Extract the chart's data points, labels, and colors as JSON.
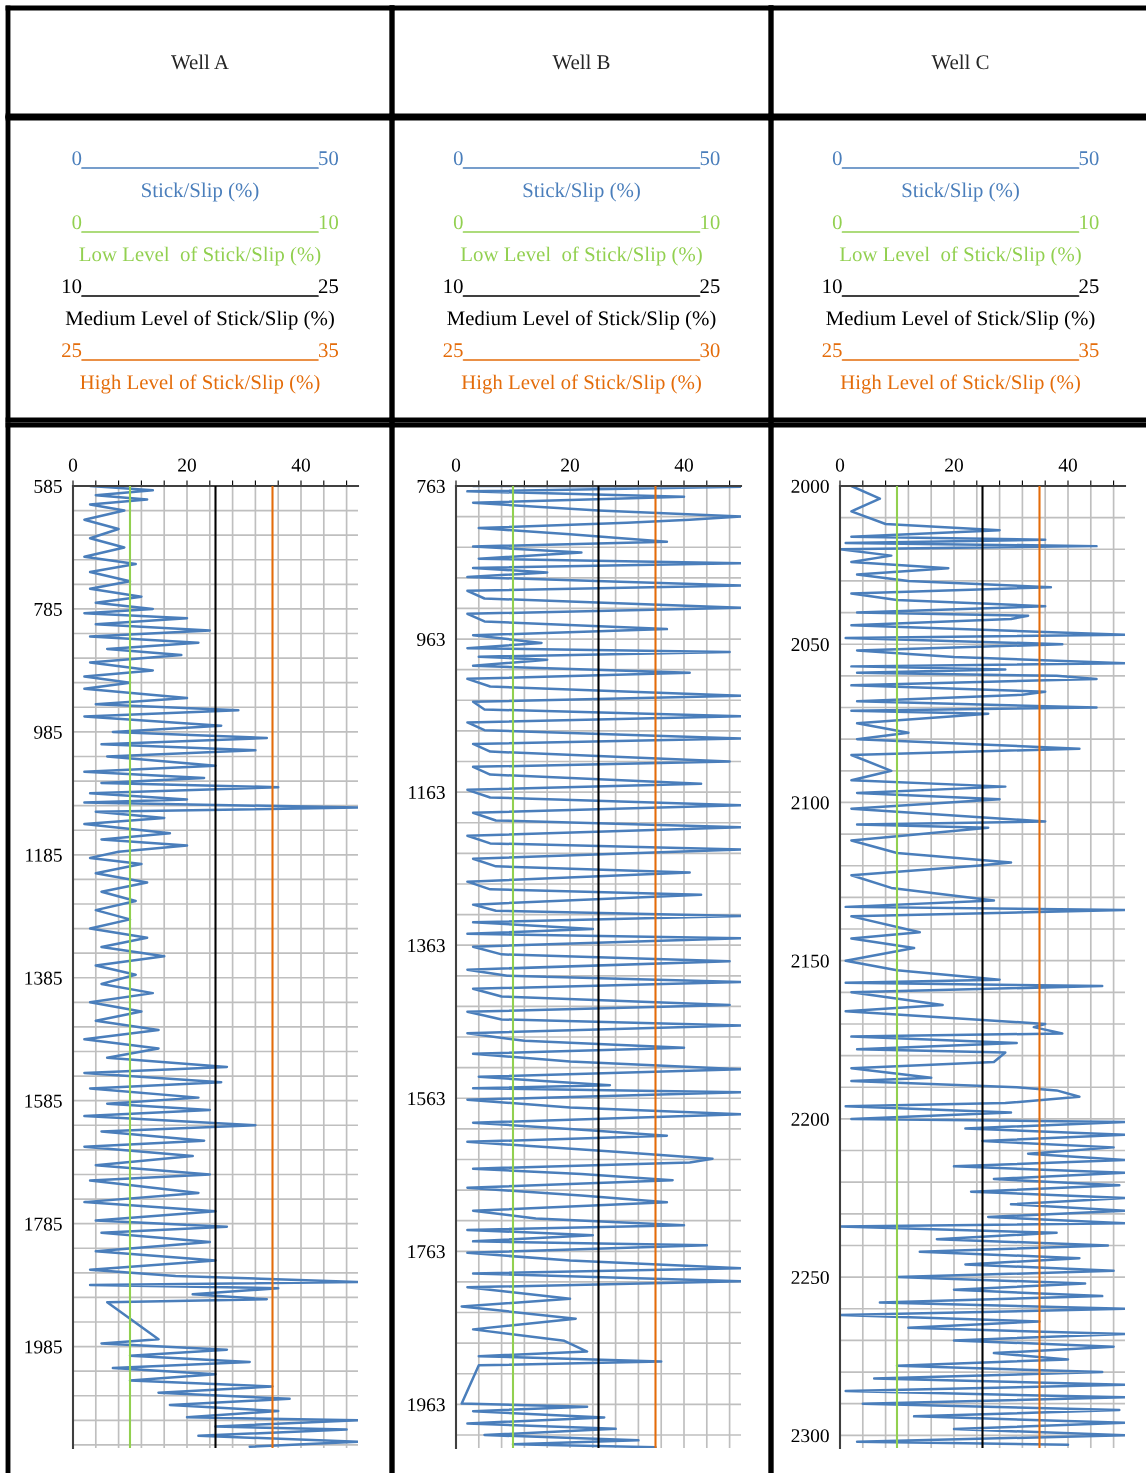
{
  "chart_data": [
    {
      "type": "line",
      "title": "Well A",
      "legend": "top",
      "grid": true,
      "xlim": [
        0,
        50
      ],
      "ylim": [
        2150,
        585
      ],
      "xticks": [
        0,
        {
          "value": 4,
          "label": null
        },
        {
          "value": 8,
          "label": null
        },
        {
          "value": 12,
          "label": null
        },
        {
          "value": 16,
          "label": null
        },
        20,
        {
          "value": 24,
          "label": null
        },
        {
          "value": 28,
          "label": null
        },
        {
          "value": 32,
          "label": null
        },
        {
          "value": 36,
          "label": null
        },
        40,
        {
          "value": 44,
          "label": null
        },
        {
          "value": 48,
          "label": null
        }
      ],
      "yticks": [
        585,
        {
          "value": 625,
          "label": null
        },
        {
          "value": 665,
          "label": null
        },
        {
          "value": 705,
          "label": null
        },
        {
          "value": 745,
          "label": null
        },
        785,
        {
          "value": 825,
          "label": null
        },
        {
          "value": 865,
          "label": null
        },
        {
          "value": 905,
          "label": null
        },
        {
          "value": 945,
          "label": null
        },
        985,
        {
          "value": 1025,
          "label": null
        },
        {
          "value": 1065,
          "label": null
        },
        {
          "value": 1105,
          "label": null
        },
        {
          "value": 1145,
          "label": null
        },
        1185,
        {
          "value": 1225,
          "label": null
        },
        {
          "value": 1265,
          "label": null
        },
        {
          "value": 1305,
          "label": null
        },
        {
          "value": 1345,
          "label": null
        },
        1385,
        {
          "value": 1425,
          "label": null
        },
        {
          "value": 1465,
          "label": null
        },
        {
          "value": 1505,
          "label": null
        },
        {
          "value": 1545,
          "label": null
        },
        1585,
        {
          "value": 1625,
          "label": null
        },
        {
          "value": 1665,
          "label": null
        },
        {
          "value": 1705,
          "label": null
        },
        {
          "value": 1745,
          "label": null
        },
        1785,
        {
          "value": 1825,
          "label": null
        },
        {
          "value": 1865,
          "label": null
        },
        {
          "value": 1905,
          "label": null
        },
        {
          "value": 1945,
          "label": null
        },
        1985,
        {
          "value": 2025,
          "label": null
        },
        {
          "value": 2065,
          "label": null
        },
        {
          "value": 2105,
          "label": null
        },
        {
          "value": 2145,
          "label": null
        }
      ],
      "annotations": [
        "0",
        "50",
        "0",
        "10",
        "10",
        "25",
        "25",
        "35"
      ],
      "ref_lines": [
        {
          "axis": "x",
          "value": 10,
          "label": "Low Level  of Stick/Slip (%)",
          "color": "#92d050"
        },
        {
          "axis": "x",
          "value": 25,
          "label": "Medium Level of Stick/Slip (%)",
          "color": "#000000"
        },
        {
          "axis": "x",
          "value": 35,
          "label": "High Level of Stick/Slip (%)",
          "color": "#e46c0a"
        }
      ],
      "series": [
        {
          "name": "Stick/Slip (%)",
          "color": "#4a7ebb",
          "x": [
            3,
            14,
            4,
            13,
            3,
            9,
            2,
            8,
            3,
            9,
            2,
            11,
            3,
            10,
            3,
            12,
            4,
            14,
            2,
            20,
            4,
            24,
            3,
            22,
            6,
            19,
            3,
            14,
            2,
            10,
            2,
            20,
            4,
            29,
            2,
            26,
            7,
            34,
            5,
            32,
            6,
            25,
            2,
            23,
            5,
            36,
            3,
            20,
            2,
            50,
            4,
            16,
            2,
            17,
            5,
            20,
            8,
            3,
            12,
            4,
            13,
            5,
            11,
            4,
            10,
            3,
            13,
            5,
            16,
            4,
            11,
            5,
            14,
            3,
            12,
            4,
            15,
            2,
            15,
            6,
            27,
            2,
            26,
            3,
            22,
            6,
            24,
            2,
            32,
            5,
            23,
            2,
            21,
            4,
            24,
            3,
            22,
            2,
            25,
            4,
            27,
            5,
            24,
            4,
            25,
            3,
            18,
            50,
            3,
            36,
            21,
            34,
            6,
            15,
            5,
            27,
            10,
            31,
            7,
            25,
            10,
            35,
            15,
            38,
            17,
            36,
            20,
            50,
            25,
            48,
            22,
            50,
            31
          ],
          "values": [
            585,
            592,
            600,
            607,
            615,
            625,
            640,
            655,
            670,
            685,
            700,
            712,
            725,
            740,
            752,
            765,
            775,
            785,
            792,
            800,
            810,
            820,
            830,
            840,
            850,
            860,
            872,
            885,
            895,
            905,
            915,
            930,
            940,
            950,
            960,
            975,
            985,
            995,
            1005,
            1015,
            1025,
            1040,
            1050,
            1060,
            1068,
            1075,
            1085,
            1095,
            1100,
            1108,
            1115,
            1125,
            1135,
            1150,
            1160,
            1170,
            1180,
            1190,
            1200,
            1215,
            1230,
            1245,
            1260,
            1275,
            1290,
            1305,
            1320,
            1335,
            1350,
            1365,
            1380,
            1395,
            1410,
            1425,
            1440,
            1455,
            1470,
            1485,
            1500,
            1515,
            1530,
            1540,
            1555,
            1565,
            1580,
            1590,
            1600,
            1610,
            1625,
            1635,
            1650,
            1660,
            1675,
            1690,
            1705,
            1715,
            1735,
            1750,
            1765,
            1780,
            1790,
            1800,
            1815,
            1830,
            1845,
            1860,
            1870,
            1880,
            1885,
            1890,
            1900,
            1908,
            1913,
            1973,
            1980,
            1990,
            2000,
            2010,
            2020,
            2030,
            2040,
            2050,
            2060,
            2070,
            2080,
            2090,
            2100,
            2105,
            2115,
            2120,
            2130,
            2140,
            2148
          ]
        }
      ]
    },
    {
      "type": "line",
      "title": "Well B",
      "legend": "top",
      "grid": true,
      "xlim": [
        0,
        50
      ],
      "ylim": [
        2020,
        763
      ],
      "xticks": [
        0,
        {
          "value": 4,
          "label": null
        },
        {
          "value": 8,
          "label": null
        },
        {
          "value": 12,
          "label": null
        },
        {
          "value": 16,
          "label": null
        },
        20,
        {
          "value": 24,
          "label": null
        },
        {
          "value": 28,
          "label": null
        },
        {
          "value": 32,
          "label": null
        },
        {
          "value": 36,
          "label": null
        },
        40,
        {
          "value": 44,
          "label": null
        },
        {
          "value": 48,
          "label": null
        }
      ],
      "yticks": [
        763,
        {
          "value": 803,
          "label": null
        },
        {
          "value": 843,
          "label": null
        },
        {
          "value": 883,
          "label": null
        },
        {
          "value": 923,
          "label": null
        },
        963,
        {
          "value": 1003,
          "label": null
        },
        {
          "value": 1043,
          "label": null
        },
        {
          "value": 1083,
          "label": null
        },
        {
          "value": 1123,
          "label": null
        },
        1163,
        {
          "value": 1203,
          "label": null
        },
        {
          "value": 1243,
          "label": null
        },
        {
          "value": 1283,
          "label": null
        },
        {
          "value": 1323,
          "label": null
        },
        1363,
        {
          "value": 1403,
          "label": null
        },
        {
          "value": 1443,
          "label": null
        },
        {
          "value": 1483,
          "label": null
        },
        {
          "value": 1523,
          "label": null
        },
        1563,
        {
          "value": 1603,
          "label": null
        },
        {
          "value": 1643,
          "label": null
        },
        {
          "value": 1683,
          "label": null
        },
        {
          "value": 1723,
          "label": null
        },
        1763,
        {
          "value": 1803,
          "label": null
        },
        {
          "value": 1843,
          "label": null
        },
        {
          "value": 1883,
          "label": null
        },
        {
          "value": 1923,
          "label": null
        },
        1963,
        {
          "value": 2003,
          "label": null
        }
      ],
      "annotations": [
        "0",
        "50",
        "0",
        "10",
        "10",
        "25",
        "25",
        "30"
      ],
      "ref_lines": [
        {
          "axis": "x",
          "value": 10,
          "label": "Low Level  of Stick/Slip (%)",
          "color": "#92d050"
        },
        {
          "axis": "x",
          "value": 25,
          "label": "Medium Level of Stick/Slip (%)",
          "color": "#000000"
        },
        {
          "axis": "x",
          "value": 35,
          "label": "High Level of Stick/Slip (%)",
          "color": "#e46c0a"
        }
      ],
      "series": [
        {
          "name": "Stick/Slip (%)",
          "color": "#4a7ebb",
          "x": [
            3,
            50,
            2,
            40,
            3,
            25,
            50,
            41,
            30,
            4,
            20,
            37,
            3,
            22,
            4,
            50,
            3,
            16,
            2,
            50,
            2,
            5,
            50,
            2,
            5,
            37,
            3,
            15,
            2,
            48,
            4,
            16,
            3,
            41,
            2,
            6,
            50,
            3,
            5,
            50,
            2,
            5,
            50,
            3,
            6,
            48,
            3,
            6,
            43,
            2,
            6,
            50,
            3,
            7,
            50,
            2,
            6,
            50,
            3,
            7,
            41,
            2,
            6,
            43,
            3,
            7,
            50,
            3,
            24,
            2,
            50,
            3,
            8,
            48,
            2,
            9,
            50,
            3,
            8,
            48,
            2,
            8,
            50,
            2,
            12,
            40,
            3,
            20,
            50,
            4,
            27,
            3,
            50,
            2,
            20,
            50,
            3,
            24,
            37,
            2,
            28,
            45,
            41,
            3,
            22,
            38,
            2,
            22,
            37,
            3,
            14,
            40,
            2,
            24,
            3,
            44,
            2,
            20,
            50,
            3,
            50,
            2,
            20,
            1,
            21,
            3,
            19,
            23,
            4,
            36,
            4,
            1,
            23,
            3,
            26,
            2,
            28,
            5,
            32,
            10,
            35
          ],
          "values": [
            763,
            764,
            770,
            777,
            785,
            795,
            803,
            807,
            811,
            818,
            826,
            836,
            842,
            850,
            858,
            864,
            870,
            876,
            882,
            893,
            900,
            910,
            922,
            930,
            940,
            950,
            958,
            968,
            975,
            980,
            986,
            990,
            998,
            1007,
            1015,
            1025,
            1037,
            1045,
            1055,
            1064,
            1072,
            1082,
            1093,
            1100,
            1110,
            1123,
            1130,
            1140,
            1152,
            1160,
            1170,
            1180,
            1190,
            1200,
            1209,
            1220,
            1230,
            1238,
            1250,
            1260,
            1268,
            1280,
            1290,
            1297,
            1310,
            1318,
            1325,
            1333,
            1342,
            1348,
            1354,
            1365,
            1375,
            1384,
            1395,
            1403,
            1411,
            1420,
            1430,
            1441,
            1450,
            1460,
            1468,
            1478,
            1488,
            1497,
            1505,
            1515,
            1525,
            1535,
            1546,
            1550,
            1555,
            1565,
            1575,
            1584,
            1595,
            1605,
            1612,
            1620,
            1633,
            1642,
            1647,
            1655,
            1662,
            1670,
            1680,
            1690,
            1699,
            1710,
            1720,
            1729,
            1735,
            1742,
            1750,
            1755,
            1765,
            1775,
            1785,
            1792,
            1802,
            1810,
            1825,
            1835,
            1851,
            1865,
            1880,
            1894,
            1900,
            1907,
            1912,
            1962,
            1966,
            1972,
            1980,
            1988,
            1995,
            2003,
            2010,
            2015,
            2019
          ]
        }
      ]
    },
    {
      "type": "line",
      "title": "Well C",
      "legend": "top",
      "grid": true,
      "xlim": [
        0,
        50
      ],
      "ylim": [
        2304,
        2000
      ],
      "xticks": [
        0,
        {
          "value": 4,
          "label": null
        },
        {
          "value": 8,
          "label": null
        },
        {
          "value": 12,
          "label": null
        },
        {
          "value": 16,
          "label": null
        },
        20,
        {
          "value": 24,
          "label": null
        },
        {
          "value": 28,
          "label": null
        },
        {
          "value": 32,
          "label": null
        },
        {
          "value": 36,
          "label": null
        },
        40,
        {
          "value": 44,
          "label": null
        },
        {
          "value": 48,
          "label": null
        }
      ],
      "yticks": [
        2000,
        {
          "value": 2010,
          "label": null
        },
        {
          "value": 2020,
          "label": null
        },
        {
          "value": 2030,
          "label": null
        },
        {
          "value": 2040,
          "label": null
        },
        2050,
        {
          "value": 2060,
          "label": null
        },
        {
          "value": 2070,
          "label": null
        },
        {
          "value": 2080,
          "label": null
        },
        {
          "value": 2090,
          "label": null
        },
        2100,
        {
          "value": 2110,
          "label": null
        },
        {
          "value": 2120,
          "label": null
        },
        {
          "value": 2130,
          "label": null
        },
        {
          "value": 2140,
          "label": null
        },
        2150,
        {
          "value": 2160,
          "label": null
        },
        {
          "value": 2170,
          "label": null
        },
        {
          "value": 2180,
          "label": null
        },
        {
          "value": 2190,
          "label": null
        },
        2200,
        {
          "value": 2210,
          "label": null
        },
        {
          "value": 2220,
          "label": null
        },
        {
          "value": 2230,
          "label": null
        },
        {
          "value": 2240,
          "label": null
        },
        2250,
        {
          "value": 2260,
          "label": null
        },
        {
          "value": 2270,
          "label": null
        },
        {
          "value": 2280,
          "label": null
        },
        {
          "value": 2290,
          "label": null
        },
        2300
      ],
      "annotations": [
        "0",
        "50",
        "0",
        "10",
        "10",
        "25",
        "25",
        "35"
      ],
      "ref_lines": [
        {
          "axis": "x",
          "value": 10,
          "label": "Low Level  of Stick/Slip (%)",
          "color": "#92d050"
        },
        {
          "axis": "x",
          "value": 25,
          "label": "Medium Level of Stick/Slip (%)",
          "color": "#000000"
        },
        {
          "axis": "x",
          "value": 35,
          "label": "High Level of Stick/Slip (%)",
          "color": "#e46c0a"
        }
      ],
      "series": [
        {
          "name": "Stick/Slip (%)",
          "color": "#4a7ebb",
          "x": [
            2,
            7,
            2,
            8,
            28,
            2,
            36,
            1,
            45,
            0,
            9,
            2,
            19,
            3,
            12,
            37,
            2,
            10,
            36,
            3,
            33,
            30,
            2,
            50,
            1,
            39,
            3,
            20,
            50,
            2,
            29,
            3,
            38,
            45,
            2,
            36,
            32,
            3,
            45,
            2,
            26,
            3,
            12,
            3,
            42,
            2,
            9,
            2,
            29,
            3,
            28,
            2,
            36,
            3,
            26,
            2,
            10,
            30,
            24,
            2,
            9,
            27,
            1,
            50,
            2,
            14,
            2,
            13,
            1,
            10,
            28,
            1,
            46,
            2,
            18,
            1,
            36,
            34,
            39,
            2,
            31,
            3,
            29,
            27,
            2,
            16,
            2,
            31,
            38,
            42,
            29,
            1,
            30,
            2,
            50,
            22,
            50,
            25,
            48,
            33,
            50,
            20,
            50,
            27,
            49,
            23,
            50,
            30,
            50,
            26,
            50,
            0,
            38,
            17,
            47,
            14,
            42,
            22,
            48,
            10,
            43,
            20,
            46,
            7,
            50,
            0,
            35,
            12,
            50,
            20,
            48,
            27,
            40,
            10,
            46,
            6,
            50,
            1,
            50,
            4,
            49,
            13,
            50,
            20,
            50,
            3,
            40
          ],
          "values": [
            2000,
            2004,
            2008,
            2012,
            2014,
            2016,
            2017,
            2018,
            2019,
            2020,
            2022,
            2024,
            2026,
            2028,
            2030,
            2032,
            2034,
            2036,
            2038,
            2040,
            2041,
            2042,
            2044,
            2047,
            2048,
            2050,
            2052,
            2054,
            2056,
            2057,
            2058,
            2059,
            2060,
            2061,
            2063,
            2065,
            2066,
            2068,
            2070,
            2071,
            2072,
            2075,
            2078,
            2080,
            2083,
            2085,
            2090,
            2093,
            2095,
            2097,
            2099,
            2102,
            2106,
            2107,
            2108,
            2112,
            2116,
            2119,
            2120,
            2123,
            2127,
            2131,
            2133,
            2134,
            2136,
            2141,
            2143,
            2146,
            2150,
            2153,
            2156,
            2157,
            2158,
            2160,
            2164,
            2166,
            2170,
            2171,
            2173,
            2174,
            2176,
            2178,
            2179,
            2182,
            2184,
            2187,
            2188,
            2190,
            2191,
            2193,
            2195,
            2196,
            2198,
            2200,
            2201,
            2203,
            2205,
            2207,
            2209,
            2211,
            2213,
            2215,
            2217,
            2219,
            2221,
            2223,
            2225,
            2227,
            2229,
            2231,
            2233,
            2234,
            2236,
            2238,
            2240,
            2242,
            2244,
            2246,
            2248,
            2250,
            2252,
            2254,
            2256,
            2258,
            2260,
            2262,
            2264,
            2266,
            2268,
            2270,
            2272,
            2274,
            2276,
            2278,
            2280,
            2282,
            2284,
            2286,
            2288,
            2290,
            2292,
            2294,
            2296,
            2298,
            2300,
            2302,
            2303
          ]
        }
      ]
    }
  ]
}
